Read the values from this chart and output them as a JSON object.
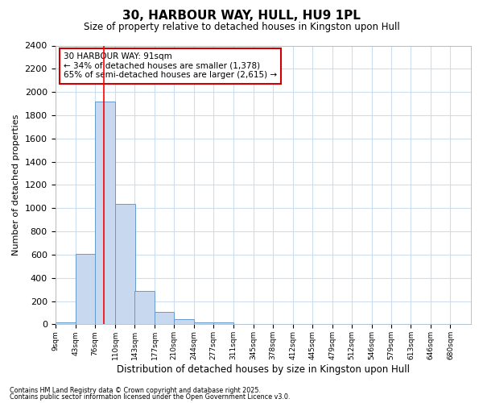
{
  "title": "30, HARBOUR WAY, HULL, HU9 1PL",
  "subtitle": "Size of property relative to detached houses in Kingston upon Hull",
  "xlabel": "Distribution of detached houses by size in Kingston upon Hull",
  "ylabel": "Number of detached properties",
  "bins": [
    9,
    43,
    76,
    110,
    143,
    177,
    210,
    244,
    277,
    311,
    345,
    378,
    412,
    445,
    479,
    512,
    546,
    579,
    613,
    646,
    680
  ],
  "bar_heights": [
    20,
    610,
    1920,
    1040,
    290,
    110,
    45,
    20,
    20,
    0,
    0,
    0,
    0,
    0,
    0,
    0,
    0,
    0,
    0,
    0
  ],
  "bar_color": "#c8d8ee",
  "bar_edge_color": "#6699cc",
  "bg_color": "#ffffff",
  "grid_color": "#ccddf0",
  "red_line_x": 91,
  "ylim": [
    0,
    2400
  ],
  "yticks": [
    0,
    200,
    400,
    600,
    800,
    1000,
    1200,
    1400,
    1600,
    1800,
    2000,
    2200,
    2400
  ],
  "annotation_title": "30 HARBOUR WAY: 91sqm",
  "annotation_line1": "← 34% of detached houses are smaller (1,378)",
  "annotation_line2": "65% of semi-detached houses are larger (2,615) →",
  "annotation_box_color": "#ffffff",
  "annotation_border_color": "#cc0000",
  "footnote1": "Contains HM Land Registry data © Crown copyright and database right 2025.",
  "footnote2": "Contains public sector information licensed under the Open Government Licence v3.0.",
  "bin_labels": [
    "9sqm",
    "43sqm",
    "76sqm",
    "110sqm",
    "143sqm",
    "177sqm",
    "210sqm",
    "244sqm",
    "277sqm",
    "311sqm",
    "345sqm",
    "378sqm",
    "412sqm",
    "445sqm",
    "479sqm",
    "512sqm",
    "546sqm",
    "579sqm",
    "613sqm",
    "646sqm",
    "680sqm"
  ]
}
